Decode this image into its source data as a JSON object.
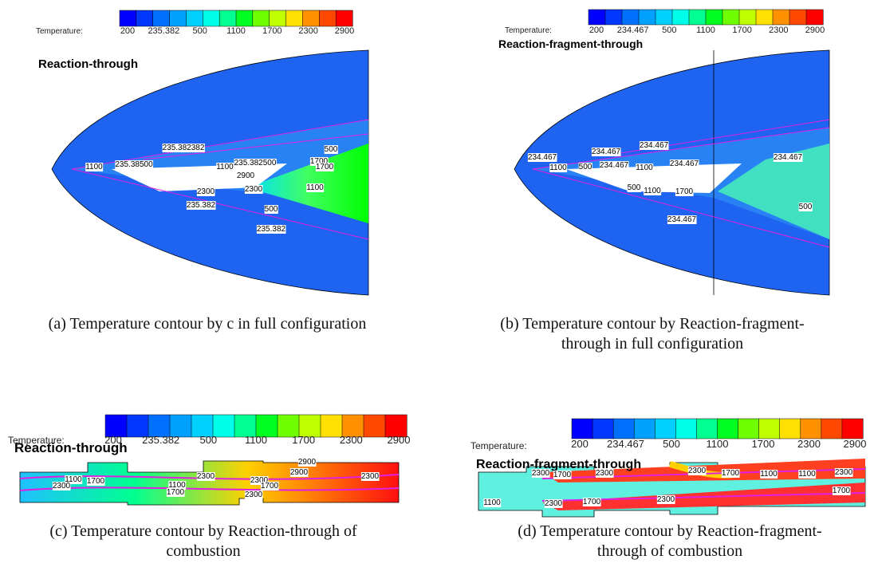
{
  "panels": [
    {
      "colorbar": {
        "label": "Temperature:",
        "ticks": [
          "200",
          "235.382",
          "500",
          "1100",
          "1700",
          "2300",
          "2900"
        ]
      },
      "plot_title": "Reaction-through",
      "contour_labels": [
        "235.382382",
        "1100",
        "235.38500",
        "1100",
        "235.382500",
        "1700",
        "500",
        "1700",
        "1100",
        "2300",
        "2300",
        "2900",
        "235.382",
        "500",
        "235.382"
      ],
      "caption": "(a) Temperature contour by c in full configuration"
    },
    {
      "colorbar": {
        "label": "Temperature:",
        "ticks": [
          "200",
          "234.467",
          "500",
          "1100",
          "1700",
          "2300",
          "2900"
        ]
      },
      "plot_title": "Reaction-fragment-through",
      "contour_labels": [
        "234.467",
        "234.467",
        "234.467",
        "1100",
        "234.467",
        "500",
        "1100",
        "234.467",
        "500",
        "1100",
        "1700",
        "234.467",
        "500",
        "234.467"
      ],
      "caption": "(b) Temperature contour by Reaction-fragment-through in full configuration"
    },
    {
      "colorbar": {
        "label": "Temperature:",
        "ticks": [
          "200",
          "235.382",
          "500",
          "1100",
          "1700",
          "2300",
          "2900"
        ]
      },
      "plot_title": "Reaction-through",
      "contour_labels": [
        "1100",
        "1700",
        "2300",
        "1100",
        "2300",
        "1700",
        "2300",
        "2900",
        "2900",
        "2300",
        "1700",
        "2300"
      ],
      "caption": "(c) Temperature contour by Reaction-through of combustion"
    },
    {
      "colorbar": {
        "label": "Temperature:",
        "ticks": [
          "200",
          "234.467",
          "500",
          "1100",
          "1700",
          "2300",
          "2900"
        ]
      },
      "plot_title": "Reaction-fragment-through",
      "contour_labels": [
        "1100",
        "2300",
        "1700",
        "2300",
        "2300",
        "1700",
        "1100",
        "2300",
        "1100",
        "2300",
        "1700",
        "2300",
        "1700"
      ],
      "caption": "(d) Temperature contour by Reaction-fragment-through of combustion"
    }
  ]
}
